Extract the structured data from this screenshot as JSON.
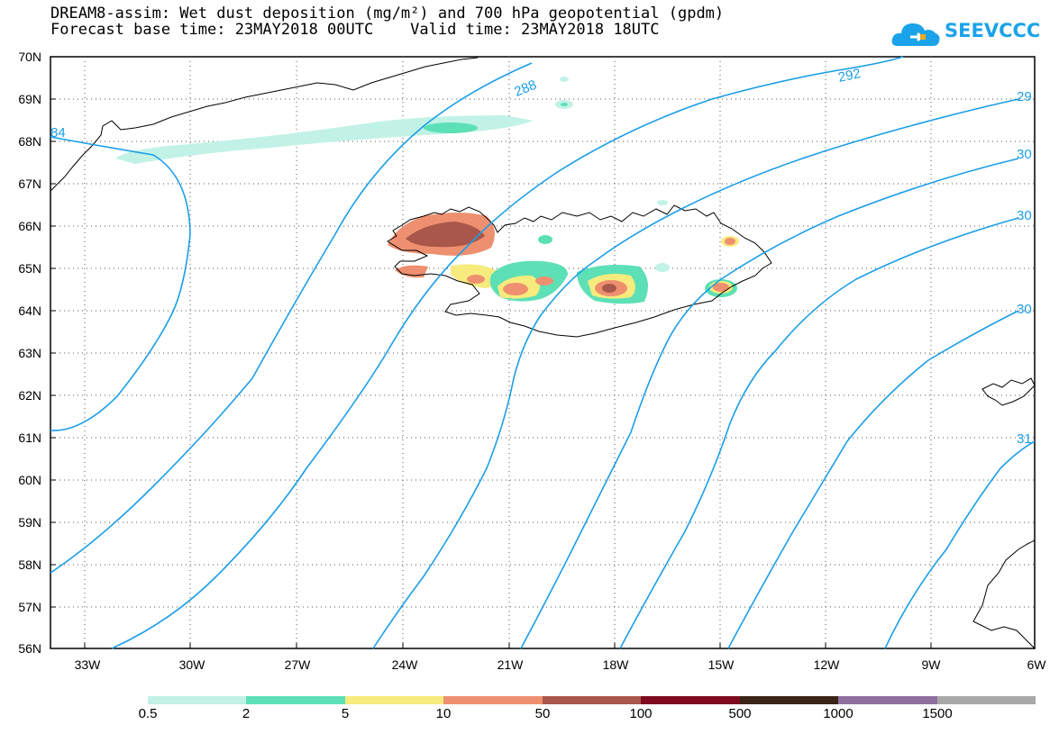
{
  "header": {
    "title_line1": "DREAM8-assim: Wet dust deposition (mg/m²) and 700 hPa geopotential (gpdm)",
    "title_line2": "Forecast base time: 23MAY2018 00UTC    Valid time: 23MAY2018 18UTC"
  },
  "logo": {
    "text": "SEEVCCC",
    "icon": "cloud-icon",
    "color": "#1aa3e8"
  },
  "map": {
    "lat_labels": [
      "70N",
      "69N",
      "68N",
      "67N",
      "66N",
      "65N",
      "64N",
      "63N",
      "62N",
      "61N",
      "60N",
      "59N",
      "58N",
      "57N",
      "56N"
    ],
    "lon_labels": [
      "33W",
      "30W",
      "27W",
      "24W",
      "21W",
      "18W",
      "15W",
      "12W",
      "9W",
      "6W"
    ],
    "contour_labels": [
      "288",
      "292",
      "84",
      "29",
      "30",
      "30",
      "30",
      "31"
    ],
    "contour_color": "#1b9ee8"
  },
  "legend": {
    "colors": [
      "#c2f2e6",
      "#5de0b6",
      "#f7eb7e",
      "#ee9070",
      "#a9574a",
      "#7d0a1f",
      "#3a2415",
      "#8f6fa0",
      "#a8a8a8"
    ],
    "tick_labels": [
      "0.5",
      "2",
      "5",
      "10",
      "50",
      "100",
      "500",
      "1000",
      "1500"
    ]
  }
}
